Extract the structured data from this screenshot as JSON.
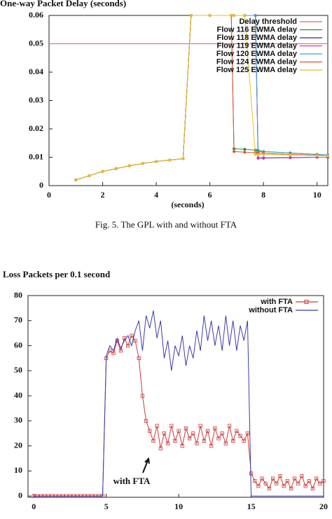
{
  "chart_data": [
    {
      "type": "line",
      "title": "One-way Packet Delay (seconds)",
      "xlabel": "(seconds)",
      "x": [
        1,
        1.5,
        2,
        2.5,
        3,
        3.5,
        4,
        4.5,
        5,
        5.3,
        6,
        6.8,
        6.9,
        7.3,
        7.7,
        7.8,
        8,
        9,
        10,
        10.4
      ],
      "threshold": {
        "name": "Delay threshold",
        "value": 0.05,
        "color": "#e0607a"
      },
      "series": [
        {
          "name": "Flow 116 EWMA delay",
          "color": "#2e8b3a",
          "values": [
            0.002,
            0.0035,
            0.005,
            0.006,
            0.007,
            0.0078,
            0.0085,
            0.009,
            0.0095,
            0.06,
            0.06,
            0.06,
            0.013,
            0.0128,
            0.0125,
            0.0124,
            0.012,
            0.0115,
            0.011,
            0.0108
          ]
        },
        {
          "name": "Flow 118 EWMA delay",
          "color": "#2a2a9a",
          "values": [
            0.002,
            0.0035,
            0.005,
            0.006,
            0.007,
            0.0078,
            0.0085,
            0.009,
            0.0095,
            0.06,
            0.06,
            0.06,
            0.06,
            0.06,
            0.06,
            0.0097,
            0.0097,
            0.0098,
            0.01,
            0.01
          ]
        },
        {
          "name": "Flow 119 EWMA delay",
          "color": "#c040c0",
          "values": [
            0.002,
            0.0035,
            0.005,
            0.006,
            0.007,
            0.0078,
            0.0085,
            0.009,
            0.0095,
            0.06,
            0.06,
            0.06,
            0.06,
            0.06,
            0.06,
            0.0098,
            0.0098,
            0.0099,
            0.01,
            0.01
          ]
        },
        {
          "name": "Flow 120 EWMA delay",
          "color": "#3aa0d8",
          "values": [
            0.002,
            0.0035,
            0.005,
            0.006,
            0.007,
            0.0078,
            0.0085,
            0.009,
            0.0095,
            0.06,
            0.06,
            0.06,
            0.06,
            0.06,
            0.06,
            0.012,
            0.012,
            0.0115,
            0.011,
            0.0108
          ]
        },
        {
          "name": "Flow 124 EWMA delay",
          "color": "#e05030",
          "values": [
            0.002,
            0.0035,
            0.005,
            0.006,
            0.007,
            0.0078,
            0.0085,
            0.009,
            0.0095,
            0.06,
            0.06,
            0.06,
            0.012,
            0.0118,
            0.0116,
            0.0115,
            0.0114,
            0.011,
            0.0107,
            0.0105
          ]
        },
        {
          "name": "Flow 125 EWMA delay",
          "color": "#e8c020",
          "values": [
            0.002,
            0.0035,
            0.005,
            0.006,
            0.007,
            0.0078,
            0.0085,
            0.009,
            0.0095,
            0.06,
            0.06,
            0.06,
            0.06,
            0.06,
            0.011,
            0.011,
            0.011,
            0.0108,
            0.0106,
            0.0105
          ]
        }
      ],
      "xlim": [
        0,
        10.4
      ],
      "ylim": [
        0,
        0.06
      ],
      "xticks": [
        0,
        2,
        4,
        6,
        8,
        10
      ],
      "yticks": [
        0,
        0.01,
        0.02,
        0.03,
        0.04,
        0.05,
        0.06
      ],
      "legend": "upper right"
    },
    {
      "type": "line",
      "title": "Loss Packets per 0.1 second",
      "x": [
        0,
        0.25,
        0.5,
        0.75,
        1,
        1.25,
        1.5,
        1.75,
        2,
        2.25,
        2.5,
        2.75,
        3,
        3.25,
        3.5,
        3.75,
        4,
        4.25,
        4.5,
        4.75,
        5,
        5.25,
        5.5,
        5.75,
        6,
        6.25,
        6.5,
        6.75,
        7,
        7.25,
        7.5,
        7.75,
        8,
        8.25,
        8.5,
        8.75,
        9,
        9.25,
        9.5,
        9.75,
        10,
        10.25,
        10.5,
        10.75,
        11,
        11.25,
        11.5,
        11.75,
        12,
        12.25,
        12.5,
        12.75,
        13,
        13.25,
        13.5,
        13.75,
        14,
        14.25,
        14.5,
        14.75,
        15,
        15.25,
        15.5,
        15.75,
        16,
        16.25,
        16.5,
        16.75,
        17,
        17.25,
        17.5,
        17.75,
        18,
        18.25,
        18.5,
        18.75,
        19,
        19.25,
        19.5,
        19.75,
        20
      ],
      "series": [
        {
          "name": "with FTA",
          "color": "#d03838",
          "marker": "square",
          "values": [
            0,
            0,
            0,
            0,
            0,
            0,
            0,
            0,
            0,
            0,
            0,
            0,
            0,
            0,
            0,
            0,
            0,
            0,
            0,
            0,
            55,
            58,
            57,
            62,
            58,
            63,
            60,
            64,
            62,
            55,
            40,
            30,
            26,
            22,
            28,
            19,
            25,
            21,
            28,
            22,
            26,
            20,
            27,
            23,
            25,
            21,
            28,
            22,
            26,
            20,
            27,
            23,
            25,
            21,
            28,
            22,
            26,
            24,
            22,
            25,
            9,
            6,
            4,
            7,
            5,
            3,
            7,
            5,
            8,
            4,
            6,
            3,
            7,
            5,
            8,
            4,
            6,
            3,
            7,
            5,
            6
          ]
        },
        {
          "name": "without FTA",
          "color": "#3a3ab0",
          "values": [
            0,
            0,
            0,
            0,
            0,
            0,
            0,
            0,
            0,
            0,
            0,
            0,
            0,
            0,
            0,
            0,
            0,
            0,
            0,
            0,
            56,
            60,
            58,
            63,
            59,
            62,
            64,
            60,
            66,
            70,
            58,
            72,
            67,
            74,
            63,
            70,
            55,
            62,
            50,
            60,
            56,
            64,
            52,
            60,
            55,
            66,
            58,
            72,
            62,
            70,
            60,
            68,
            58,
            72,
            60,
            70,
            58,
            68,
            62,
            70,
            0,
            0,
            0,
            0,
            0,
            0,
            0,
            0,
            0,
            0,
            0,
            0,
            0,
            0,
            0,
            0,
            0,
            0,
            0,
            0,
            0
          ]
        }
      ],
      "xlim": [
        -0.4,
        20
      ],
      "ylim": [
        -0.5,
        80
      ],
      "xticks": [
        0,
        5,
        10,
        15,
        20
      ],
      "yticks": [
        0,
        10,
        20,
        30,
        40,
        50,
        60,
        70,
        80
      ],
      "legend": "upper right",
      "annotation": "with FTA"
    }
  ],
  "figure_caption": "Fig. 5. The GPL with and without FTA"
}
